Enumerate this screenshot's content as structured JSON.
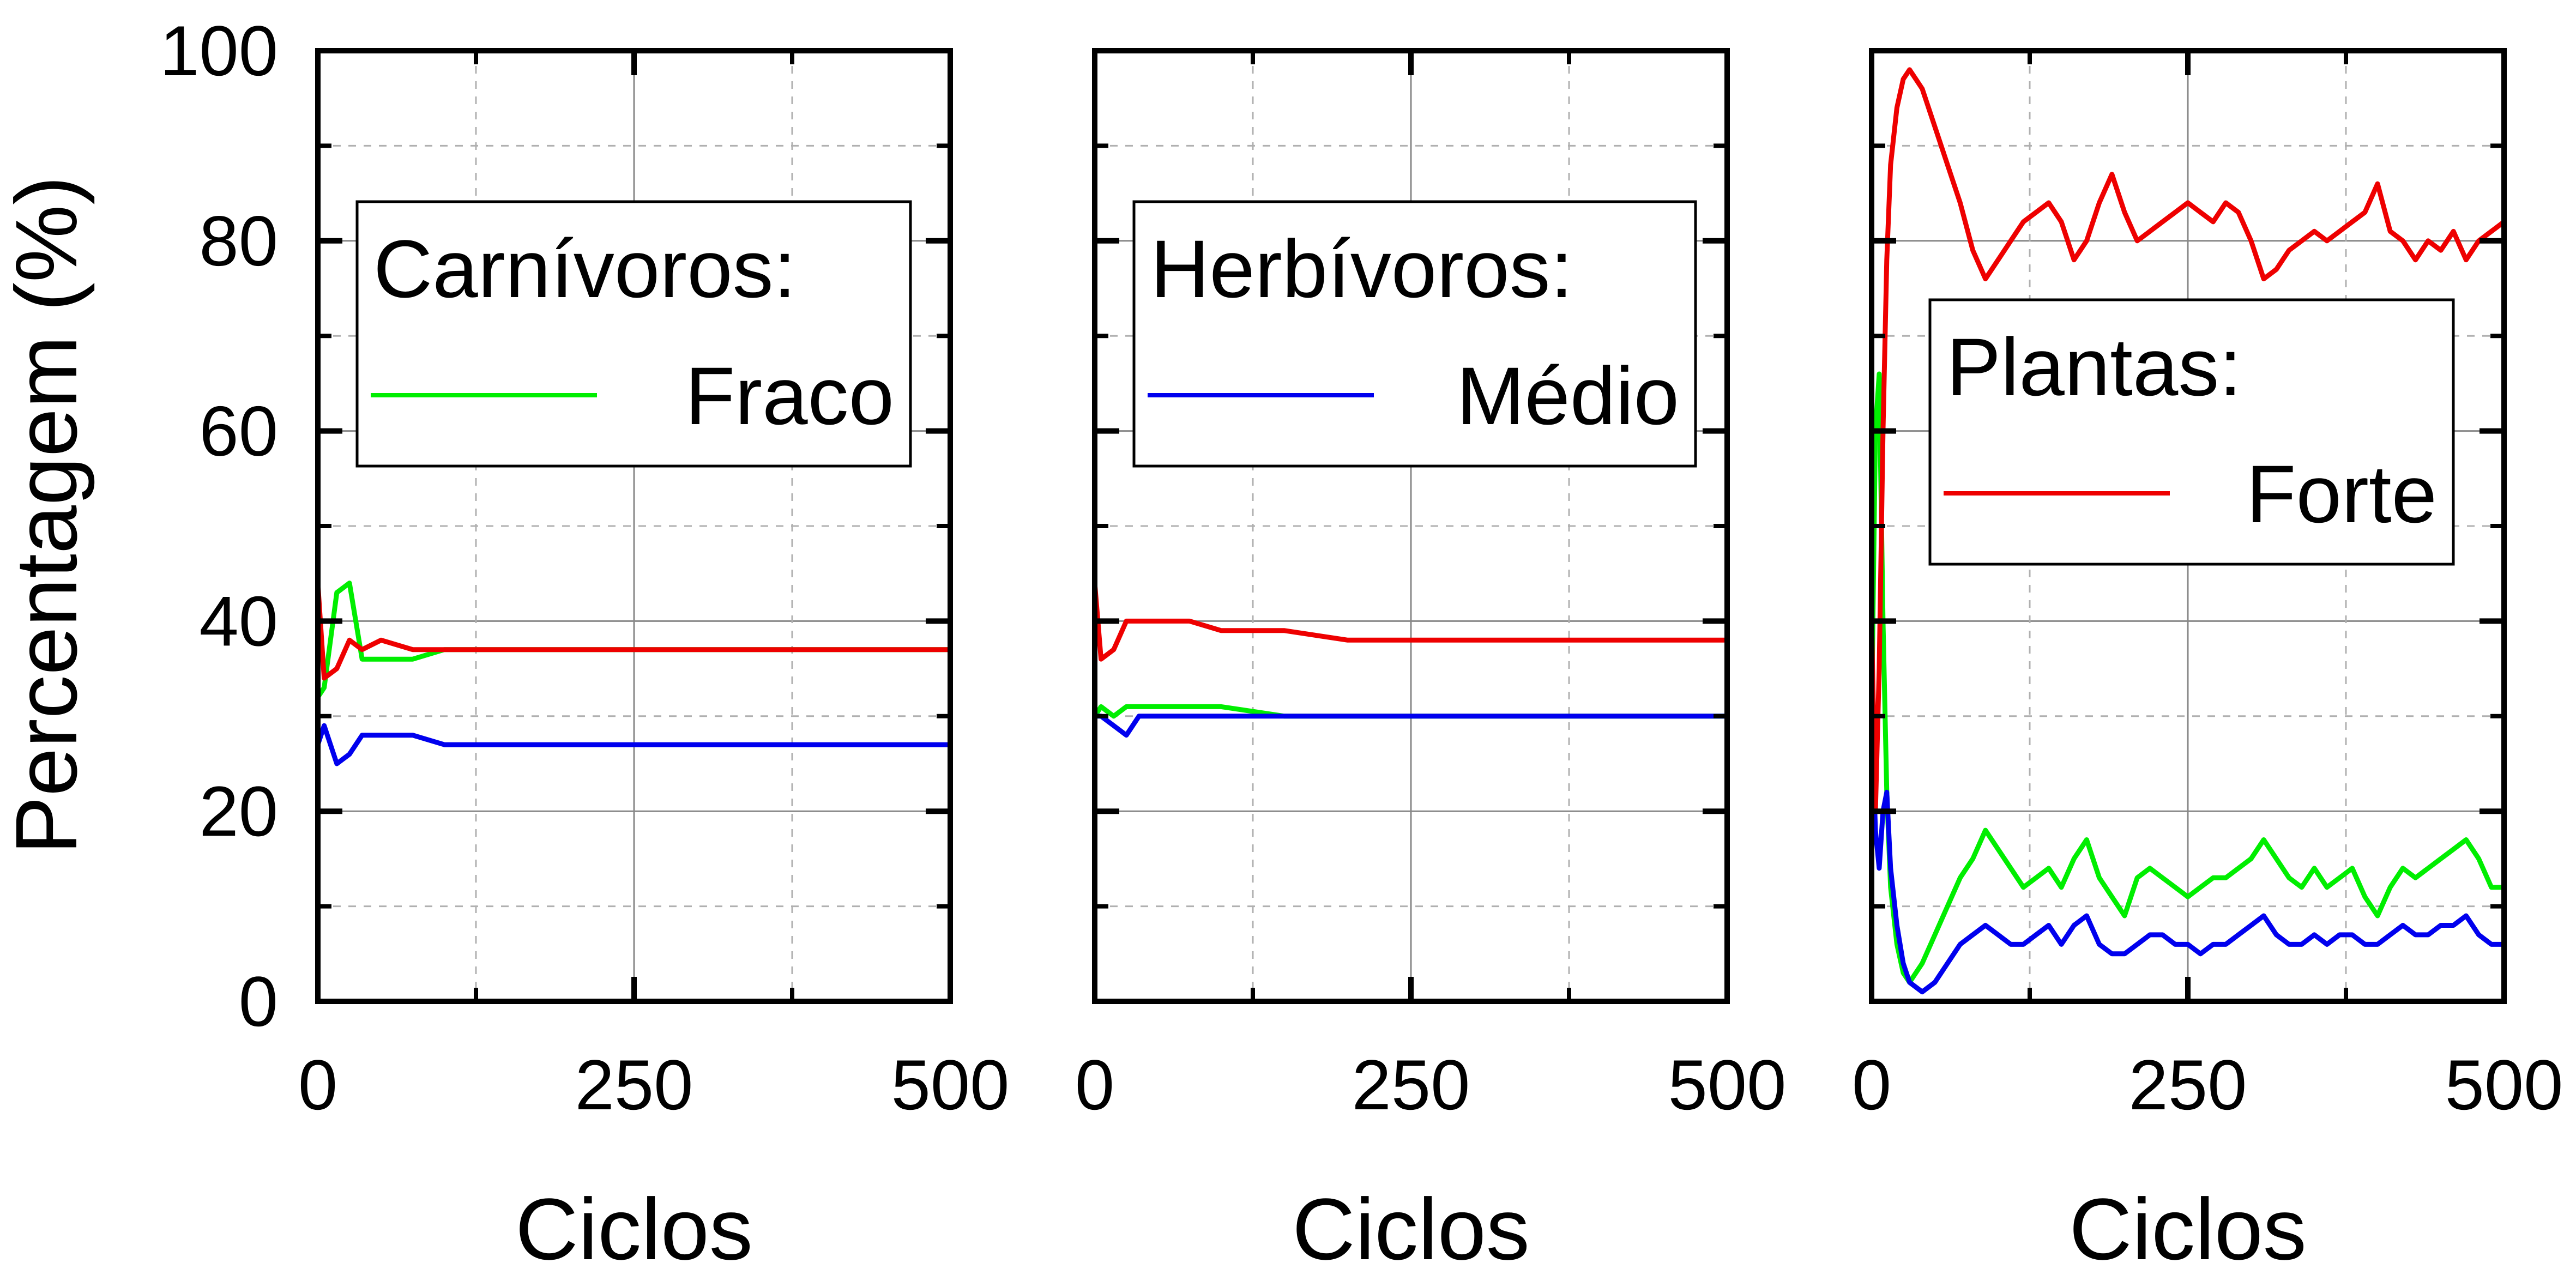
{
  "figure": {
    "y_axis_label": "Percentagem (%)",
    "y_ticks": [
      "0",
      "20",
      "40",
      "60",
      "80",
      "100"
    ]
  },
  "colors": {
    "carnivores": "#00ee00",
    "herbivores": "#0000ee",
    "plants": "#ee0000",
    "grid": "#b0b0b0"
  },
  "panels": [
    {
      "x_axis_label": "Ciclos",
      "x_ticks": [
        "0",
        "250",
        "500"
      ],
      "legend": {
        "title": "Carnívoros:",
        "entry": "Fraco",
        "color_key": "carnivores"
      }
    },
    {
      "x_axis_label": "Ciclos",
      "x_ticks": [
        "0",
        "250",
        "500"
      ],
      "legend": {
        "title": "Herbívoros:",
        "entry": "Médio",
        "color_key": "herbivores"
      }
    },
    {
      "x_axis_label": "Ciclos",
      "x_ticks": [
        "0",
        "250",
        "500"
      ],
      "legend": {
        "title": "Plantas:",
        "entry": "Forte",
        "color_key": "plants"
      }
    }
  ],
  "chart_data": [
    {
      "type": "line",
      "xlim": [
        0,
        500
      ],
      "ylim": [
        0,
        100
      ],
      "grid": true,
      "legend_position": "upper-center",
      "series": [
        {
          "color_key": "carnivores",
          "x": [
            0,
            5,
            15,
            25,
            35,
            50,
            75,
            100,
            150,
            200,
            250,
            300,
            350,
            400,
            450,
            500
          ],
          "y": [
            32,
            33,
            43,
            44,
            36,
            36,
            36,
            37,
            37,
            37,
            37,
            37,
            37,
            37,
            37,
            37
          ]
        },
        {
          "color_key": "herbivores",
          "x": [
            0,
            5,
            15,
            25,
            35,
            50,
            75,
            100,
            150,
            200,
            250,
            300,
            350,
            400,
            450,
            500
          ],
          "y": [
            27,
            29,
            25,
            26,
            28,
            28,
            28,
            27,
            27,
            27,
            27,
            27,
            27,
            27,
            27,
            27
          ]
        },
        {
          "color_key": "plants",
          "x": [
            0,
            5,
            15,
            25,
            35,
            50,
            75,
            100,
            150,
            200,
            250,
            300,
            350,
            400,
            450,
            500
          ],
          "y": [
            44,
            34,
            35,
            38,
            37,
            38,
            37,
            37,
            37,
            37,
            37,
            37,
            37,
            37,
            37,
            37
          ]
        }
      ]
    },
    {
      "type": "line",
      "xlim": [
        0,
        500
      ],
      "ylim": [
        0,
        100
      ],
      "grid": true,
      "legend_position": "upper-center",
      "series": [
        {
          "color_key": "carnivores",
          "x": [
            0,
            5,
            15,
            25,
            35,
            50,
            75,
            100,
            150,
            200,
            250,
            300,
            350,
            400,
            450,
            500
          ],
          "y": [
            30,
            31,
            30,
            31,
            31,
            31,
            31,
            31,
            30,
            30,
            30,
            30,
            30,
            30,
            30,
            30
          ]
        },
        {
          "color_key": "herbivores",
          "x": [
            0,
            5,
            15,
            25,
            35,
            50,
            75,
            100,
            150,
            200,
            250,
            300,
            350,
            400,
            450,
            500
          ],
          "y": [
            30,
            30,
            29,
            28,
            30,
            30,
            30,
            30,
            30,
            30,
            30,
            30,
            30,
            30,
            30,
            30
          ]
        },
        {
          "color_key": "plants",
          "x": [
            0,
            5,
            15,
            25,
            35,
            50,
            75,
            100,
            150,
            200,
            250,
            300,
            350,
            400,
            450,
            500
          ],
          "y": [
            44,
            36,
            37,
            40,
            40,
            40,
            40,
            39,
            39,
            38,
            38,
            38,
            38,
            38,
            38,
            38
          ]
        }
      ]
    },
    {
      "type": "line",
      "xlim": [
        0,
        500
      ],
      "ylim": [
        0,
        100
      ],
      "grid": true,
      "legend_position": "center-right",
      "series": [
        {
          "color_key": "carnivores",
          "x": [
            0,
            3,
            6,
            9,
            12,
            15,
            20,
            25,
            30,
            40,
            50,
            60,
            70,
            80,
            90,
            100,
            110,
            120,
            130,
            140,
            150,
            160,
            170,
            180,
            190,
            200,
            210,
            220,
            230,
            240,
            250,
            260,
            270,
            280,
            290,
            300,
            310,
            320,
            330,
            340,
            350,
            360,
            370,
            380,
            390,
            400,
            410,
            420,
            430,
            440,
            450,
            460,
            470,
            480,
            490,
            500
          ],
          "y": [
            30,
            60,
            66,
            40,
            22,
            12,
            6,
            3,
            2,
            4,
            7,
            10,
            13,
            15,
            18,
            16,
            14,
            12,
            13,
            14,
            12,
            15,
            17,
            13,
            11,
            9,
            13,
            14,
            13,
            12,
            11,
            12,
            13,
            13,
            14,
            15,
            17,
            15,
            13,
            12,
            14,
            12,
            13,
            14,
            11,
            9,
            12,
            14,
            13,
            14,
            15,
            16,
            17,
            15,
            12,
            12
          ]
        },
        {
          "color_key": "herbivores",
          "x": [
            0,
            3,
            6,
            9,
            12,
            15,
            20,
            25,
            30,
            40,
            50,
            60,
            70,
            80,
            90,
            100,
            110,
            120,
            130,
            140,
            150,
            160,
            170,
            180,
            190,
            200,
            210,
            220,
            230,
            240,
            250,
            260,
            270,
            280,
            290,
            300,
            310,
            320,
            330,
            340,
            350,
            360,
            370,
            380,
            390,
            400,
            410,
            420,
            430,
            440,
            450,
            460,
            470,
            480,
            490,
            500
          ],
          "y": [
            30,
            18,
            14,
            20,
            22,
            14,
            8,
            4,
            2,
            1,
            2,
            4,
            6,
            7,
            8,
            7,
            6,
            6,
            7,
            8,
            6,
            8,
            9,
            6,
            5,
            5,
            6,
            7,
            7,
            6,
            6,
            5,
            6,
            6,
            7,
            8,
            9,
            7,
            6,
            6,
            7,
            6,
            7,
            7,
            6,
            6,
            7,
            8,
            7,
            7,
            8,
            8,
            9,
            7,
            6,
            6
          ]
        },
        {
          "color_key": "plants",
          "x": [
            0,
            3,
            6,
            9,
            12,
            15,
            20,
            25,
            30,
            35,
            40,
            50,
            60,
            70,
            80,
            90,
            100,
            110,
            120,
            130,
            140,
            150,
            160,
            170,
            180,
            190,
            200,
            210,
            220,
            230,
            240,
            250,
            260,
            270,
            280,
            290,
            300,
            310,
            320,
            330,
            340,
            350,
            360,
            370,
            380,
            390,
            400,
            410,
            420,
            430,
            440,
            450,
            460,
            470,
            480,
            490,
            500
          ],
          "y": [
            40,
            20,
            35,
            60,
            78,
            88,
            94,
            97,
            98,
            97,
            96,
            92,
            88,
            84,
            79,
            76,
            78,
            80,
            82,
            83,
            84,
            82,
            78,
            80,
            84,
            87,
            83,
            80,
            81,
            82,
            83,
            84,
            83,
            82,
            84,
            83,
            80,
            76,
            77,
            79,
            80,
            81,
            80,
            81,
            82,
            83,
            86,
            81,
            80,
            78,
            80,
            79,
            81,
            78,
            80,
            81,
            82
          ]
        }
      ]
    }
  ]
}
